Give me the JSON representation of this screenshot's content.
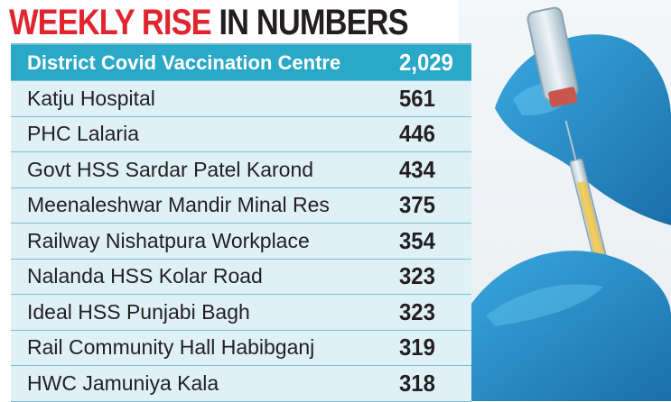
{
  "title": {
    "part1": "WEEKLY RISE",
    "part2": "IN NUMBERS"
  },
  "colors": {
    "accent": "#e0252f",
    "header_bg": "#2aa8c7",
    "row_bg": "#dff1f7",
    "text": "#231f20"
  },
  "chart_data": {
    "type": "table",
    "title": "WEEKLY RISE IN NUMBERS",
    "header": {
      "name": "District Covid Vaccination Centre",
      "value": "2,029"
    },
    "rows": [
      {
        "name": "Katju Hospital",
        "value": "561"
      },
      {
        "name": "PHC Lalaria",
        "value": "446"
      },
      {
        "name": "Govt HSS Sardar Patel Karond",
        "value": "434"
      },
      {
        "name": "Meenaleshwar Mandir Minal Res",
        "value": "375"
      },
      {
        "name": "Railway Nishatpura Workplace",
        "value": "354"
      },
      {
        "name": "Nalanda HSS Kolar Road",
        "value": "323"
      },
      {
        "name": "Ideal HSS Punjabi Bagh",
        "value": "323"
      },
      {
        "name": "Rail Community Hall Habibganj",
        "value": "319"
      },
      {
        "name": "HWC Jamuniya Kala",
        "value": "318"
      }
    ]
  }
}
